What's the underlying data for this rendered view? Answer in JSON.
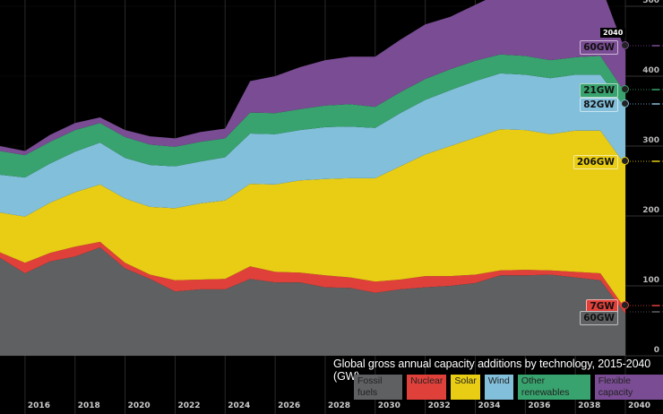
{
  "chart_data": {
    "type": "area",
    "stacked": true,
    "title": "Global gross annual capacity additions by technology, 2015-2040 (GW)",
    "xlabel": "",
    "ylabel": "",
    "x": [
      2015,
      2016,
      2017,
      2018,
      2019,
      2020,
      2021,
      2022,
      2023,
      2024,
      2025,
      2026,
      2027,
      2028,
      2029,
      2030,
      2031,
      2032,
      2033,
      2034,
      2035,
      2036,
      2037,
      2038,
      2039,
      2040
    ],
    "xticks": [
      "2016",
      "2018",
      "2020",
      "2022",
      "2024",
      "2026",
      "2028",
      "2030",
      "2032",
      "2034",
      "2036",
      "2038",
      "2040"
    ],
    "yticks": [
      "0",
      "100",
      "200",
      "300",
      "400",
      "500"
    ],
    "ylim": [
      0,
      500
    ],
    "grid": true,
    "legend_position": "bottom-right",
    "series": [
      {
        "name": "Fossil fuels",
        "color": "#5f6062",
        "values": [
          140,
          118,
          135,
          142,
          155,
          125,
          110,
          92,
          95,
          95,
          110,
          105,
          105,
          98,
          97,
          90,
          95,
          98,
          100,
          104,
          115,
          115,
          116,
          112,
          108,
          60
        ]
      },
      {
        "name": "Nuclear",
        "color": "#e0403a",
        "values": [
          8,
          15,
          12,
          14,
          8,
          8,
          6,
          16,
          14,
          15,
          18,
          15,
          14,
          17,
          15,
          16,
          14,
          16,
          14,
          12,
          7,
          8,
          6,
          8,
          10,
          7
        ]
      },
      {
        "name": "Solar",
        "color": "#e8cd14",
        "values": [
          57,
          66,
          72,
          78,
          82,
          92,
          97,
          103,
          109,
          112,
          118,
          125,
          132,
          138,
          142,
          148,
          162,
          174,
          186,
          196,
          202,
          200,
          195,
          202,
          204,
          206
        ]
      },
      {
        "name": "Wind",
        "color": "#82bfda",
        "values": [
          54,
          56,
          56,
          58,
          60,
          58,
          60,
          60,
          60,
          62,
          72,
          72,
          72,
          74,
          74,
          72,
          76,
          78,
          80,
          81,
          80,
          79,
          80,
          80,
          80,
          82
        ]
      },
      {
        "name": "Other renewables",
        "color": "#38a36e",
        "values": [
          34,
          32,
          31,
          31,
          28,
          30,
          29,
          28,
          28,
          27,
          30,
          30,
          30,
          31,
          32,
          30,
          30,
          30,
          30,
          29,
          27,
          27,
          26,
          25,
          27,
          21
        ]
      },
      {
        "name": "Flexible capacity",
        "color": "#7a4c94",
        "values": [
          7,
          6,
          10,
          10,
          8,
          10,
          12,
          12,
          14,
          14,
          45,
          53,
          60,
          65,
          68,
          72,
          75,
          78,
          75,
          80,
          88,
          95,
          92,
          95,
          102,
          60
        ]
      }
    ],
    "end_labels": [
      {
        "series": "Flexible capacity",
        "text": "60GW"
      },
      {
        "series": "Other renewables",
        "text": "21GW"
      },
      {
        "series": "Wind",
        "text": "82GW"
      },
      {
        "series": "Solar",
        "text": "206GW"
      },
      {
        "series": "Nuclear",
        "text": "7GW"
      },
      {
        "series": "Fossil fuels",
        "text": "60GW"
      }
    ],
    "end_year_label": "2040"
  }
}
